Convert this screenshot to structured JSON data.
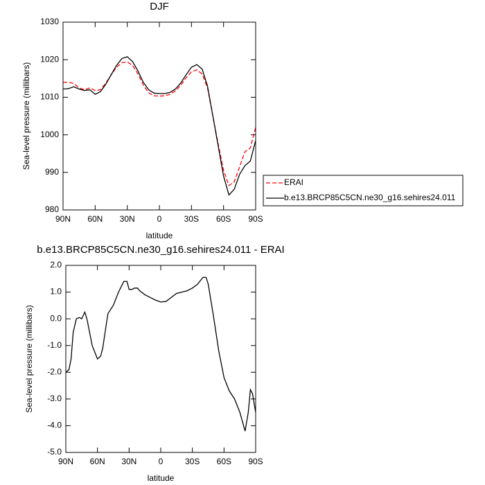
{
  "chart_data": [
    {
      "type": "line",
      "title": "DJF",
      "xlabel": "latitude",
      "ylabel": "Sea-level pressure (millibars)",
      "x": [
        90,
        85,
        80,
        75,
        70,
        65,
        60,
        55,
        50,
        45,
        40,
        35,
        30,
        25,
        20,
        15,
        10,
        5,
        0,
        -5,
        -10,
        -15,
        -20,
        -25,
        -30,
        -35,
        -40,
        -45,
        -50,
        -55,
        -60,
        -65,
        -70,
        -75,
        -80,
        -85,
        -90
      ],
      "series": [
        {
          "name": "ERAI",
          "color": "#ff0000",
          "line_style": "dashed",
          "values": [
            1014,
            1014,
            1013.7,
            1012.5,
            1012,
            1012.5,
            1011.8,
            1012,
            1013.8,
            1016,
            1018,
            1019.2,
            1019.4,
            1018.5,
            1016.2,
            1013.3,
            1011.2,
            1010.4,
            1010.3,
            1010.4,
            1010.8,
            1011.7,
            1013.2,
            1015.2,
            1016.8,
            1017.3,
            1016.2,
            1012.5,
            1005,
            997.5,
            990.5,
            986.5,
            987.5,
            991.5,
            995.5,
            996.5,
            1002
          ]
        },
        {
          "name": "b.e13.BRCP85C5CN.ne30_g16.sehires24.011",
          "color": "#000000",
          "line_style": "solid",
          "values": [
            1012.2,
            1012.3,
            1012.8,
            1012.2,
            1011.8,
            1012,
            1010.8,
            1011.5,
            1013.5,
            1016,
            1018.5,
            1020.3,
            1020.8,
            1019.5,
            1017,
            1014,
            1012,
            1011.1,
            1011,
            1011,
            1011.3,
            1012.2,
            1013.8,
            1016,
            1018,
            1018.7,
            1017.5,
            1013,
            1005,
            997,
            989,
            984,
            985.5,
            989.5,
            991.8,
            993,
            998.5
          ]
        }
      ],
      "xlim": [
        90,
        -90
      ],
      "xticks": [
        {
          "value": 90,
          "label": "90N"
        },
        {
          "value": 60,
          "label": "60N"
        },
        {
          "value": 30,
          "label": "30N"
        },
        0,
        {
          "value": -30,
          "label": "30S"
        },
        {
          "value": -60,
          "label": "60S"
        },
        {
          "value": -90,
          "label": "90S"
        }
      ],
      "ylim": [
        980,
        1030
      ],
      "yticks": [
        980,
        990,
        1000,
        1010,
        1020,
        1030
      ],
      "legend": "right"
    },
    {
      "type": "line",
      "title": "b.e13.BRCP85C5CN.ne30_g16.sehires24.011 - ERAI",
      "xlabel": "latitude",
      "ylabel": "Sea-level pressure (millibars)",
      "x": [
        90,
        87,
        85,
        83,
        80,
        77,
        75,
        72,
        70,
        67,
        65,
        62,
        60,
        57,
        55,
        52,
        50,
        45,
        40,
        35,
        32,
        30,
        27,
        25,
        22,
        20,
        15,
        10,
        5,
        0,
        -5,
        -10,
        -15,
        -20,
        -25,
        -30,
        -35,
        -40,
        -43,
        -45,
        -50,
        -55,
        -60,
        -65,
        -70,
        -75,
        -80,
        -83,
        -85,
        -87,
        -90
      ],
      "values": [
        -2.0,
        -1.9,
        -1.5,
        -0.5,
        0.0,
        0.05,
        0.0,
        0.25,
        0.0,
        -0.6,
        -1.0,
        -1.3,
        -1.5,
        -1.4,
        -1.1,
        -0.3,
        0.2,
        0.5,
        1.0,
        1.4,
        1.4,
        1.1,
        1.1,
        1.15,
        1.15,
        1.05,
        0.9,
        0.8,
        0.7,
        0.63,
        0.65,
        0.8,
        0.95,
        1.0,
        1.05,
        1.15,
        1.3,
        1.55,
        1.55,
        1.3,
        0.1,
        -1.2,
        -2.2,
        -2.7,
        -3.0,
        -3.5,
        -4.2,
        -3.5,
        -2.65,
        -2.8,
        -3.5
      ],
      "color": "#000000",
      "xlim": [
        90,
        -90
      ],
      "xticks": [
        {
          "value": 90,
          "label": "90N"
        },
        {
          "value": 60,
          "label": "60N"
        },
        {
          "value": 30,
          "label": "30N"
        },
        0,
        {
          "value": -30,
          "label": "30S"
        },
        {
          "value": -60,
          "label": "60S"
        },
        {
          "value": -90,
          "label": "90S"
        }
      ],
      "ylim": [
        -5,
        2
      ],
      "yticks": [
        {
          "value": -5,
          "label": "-5.0"
        },
        {
          "value": -4,
          "label": "-4.0"
        },
        {
          "value": -3,
          "label": "-3.0"
        },
        {
          "value": -2,
          "label": "-2.0"
        },
        {
          "value": -1,
          "label": "-1.0"
        },
        {
          "value": 0,
          "label": "0.0"
        },
        {
          "value": 1,
          "label": "1.0"
        },
        {
          "value": 2,
          "label": "2.0"
        }
      ]
    }
  ]
}
